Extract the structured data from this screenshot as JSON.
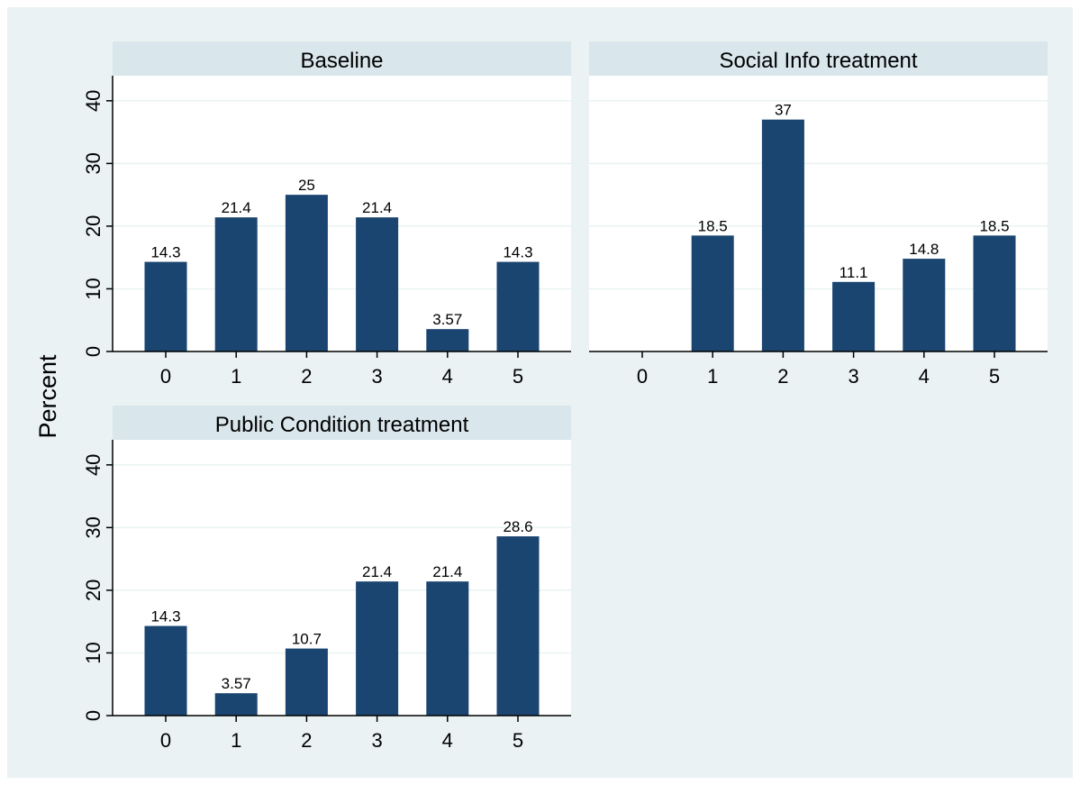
{
  "chart_data": {
    "type": "bar",
    "ylabel": "Percent",
    "ylim": [
      0,
      44
    ],
    "yticks": [
      0,
      10,
      20,
      30,
      40
    ],
    "grid": true,
    "categories": [
      "0",
      "1",
      "2",
      "3",
      "4",
      "5"
    ],
    "bar_color": "#1a4570",
    "panels": [
      {
        "title": "Baseline",
        "values": [
          14.3,
          21.4,
          25,
          21.4,
          3.57,
          14.3
        ],
        "labels": [
          "14.3",
          "21.4",
          "25",
          "21.4",
          "3.57",
          "14.3"
        ]
      },
      {
        "title": "Social Info treatment",
        "values": [
          0,
          18.5,
          37,
          11.1,
          14.8,
          18.5
        ],
        "labels": [
          "",
          "18.5",
          "37",
          "11.1",
          "14.8",
          "18.5"
        ]
      },
      {
        "title": "Public Condition treatment",
        "values": [
          14.3,
          3.57,
          10.7,
          21.4,
          21.4,
          28.6
        ],
        "labels": [
          "14.3",
          "3.57",
          "10.7",
          "21.4",
          "21.4",
          "28.6"
        ]
      }
    ]
  },
  "colors": {
    "outer_background": "#eaf2f3",
    "plot_background": "#ffffff",
    "header_background": "#d9e6eb",
    "grid": "#eaf2f3",
    "axis": "#000000"
  }
}
